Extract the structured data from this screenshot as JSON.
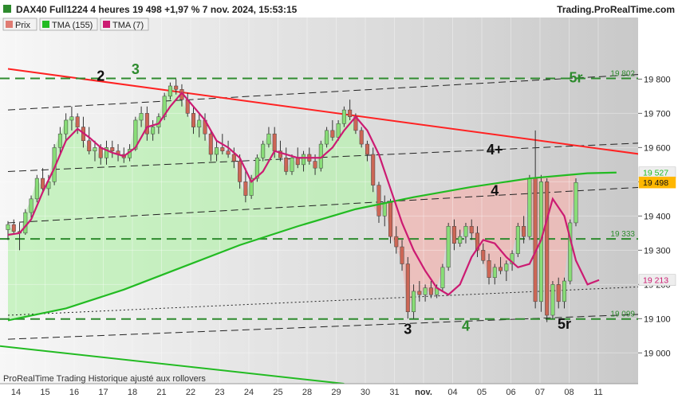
{
  "header": {
    "title": "DAX40 Full1224 4 heures 19 498 +1,97 % 7 nov. 2024, 15:53:15",
    "brand": "Trading.ProRealTime.com"
  },
  "footer": {
    "note": "ProRealTime Trading Historique ajusté aux rollovers"
  },
  "legend": [
    {
      "label": "Prix",
      "color": "#e07b72"
    },
    {
      "label": "TMA (155)",
      "color": "#22bb22"
    },
    {
      "label": "TMA (7)",
      "color": "#cc1b72"
    }
  ],
  "colors": {
    "up_candle": "#88dd77",
    "down_candle": "#cc6655",
    "tma155": "#22bb22",
    "tma7": "#cc1b72",
    "trendline_red": "#ff2222",
    "support_dash": "#2e8b2e",
    "label_green": "#2e8b2e",
    "price_badge": "#ffb700"
  },
  "chart_data": {
    "type": "candlestick",
    "title": "DAX40 Full1224 4 heures",
    "ylim": [
      18910,
      19980
    ],
    "yticks": [
      {
        "value": 19800,
        "label": "19 800"
      },
      {
        "value": 19700,
        "label": "19 700"
      },
      {
        "value": 19600,
        "label": "19 600"
      },
      {
        "value": 19500,
        "label": "19 500"
      },
      {
        "value": 19400,
        "label": "19 400"
      },
      {
        "value": 19300,
        "label": "19 300"
      },
      {
        "value": 19200,
        "label": "19 200"
      },
      {
        "value": 19100,
        "label": "19 100"
      },
      {
        "value": 19000,
        "label": "19 000"
      }
    ],
    "xticks": [
      "14",
      "15",
      "16",
      "17",
      "18",
      "21",
      "22",
      "23",
      "24",
      "25",
      "28",
      "29",
      "30",
      "31",
      "nov.",
      "04",
      "05",
      "06",
      "07",
      "08",
      "11"
    ],
    "candles": [
      {
        "o": 19360,
        "h": 19385,
        "l": 19330,
        "c": 19375
      },
      {
        "o": 19375,
        "h": 19390,
        "l": 19345,
        "c": 19355
      },
      {
        "o": 19355,
        "h": 19380,
        "l": 19300,
        "c": 19350
      },
      {
        "o": 19350,
        "h": 19420,
        "l": 19345,
        "c": 19410
      },
      {
        "o": 19410,
        "h": 19460,
        "l": 19395,
        "c": 19450
      },
      {
        "o": 19450,
        "h": 19520,
        "l": 19440,
        "c": 19510
      },
      {
        "o": 19510,
        "h": 19540,
        "l": 19470,
        "c": 19480
      },
      {
        "o": 19480,
        "h": 19520,
        "l": 19460,
        "c": 19500
      },
      {
        "o": 19500,
        "h": 19610,
        "l": 19490,
        "c": 19600
      },
      {
        "o": 19600,
        "h": 19660,
        "l": 19580,
        "c": 19640
      },
      {
        "o": 19640,
        "h": 19700,
        "l": 19620,
        "c": 19680
      },
      {
        "o": 19680,
        "h": 19720,
        "l": 19650,
        "c": 19690
      },
      {
        "o": 19690,
        "h": 19700,
        "l": 19640,
        "c": 19660
      },
      {
        "o": 19660,
        "h": 19690,
        "l": 19600,
        "c": 19620
      },
      {
        "o": 19620,
        "h": 19660,
        "l": 19580,
        "c": 19590
      },
      {
        "o": 19590,
        "h": 19620,
        "l": 19560,
        "c": 19600
      },
      {
        "o": 19600,
        "h": 19610,
        "l": 19550,
        "c": 19570
      },
      {
        "o": 19570,
        "h": 19620,
        "l": 19550,
        "c": 19600
      },
      {
        "o": 19600,
        "h": 19620,
        "l": 19570,
        "c": 19590
      },
      {
        "o": 19590,
        "h": 19610,
        "l": 19560,
        "c": 19580
      },
      {
        "o": 19580,
        "h": 19600,
        "l": 19555,
        "c": 19570
      },
      {
        "o": 19570,
        "h": 19610,
        "l": 19560,
        "c": 19595
      },
      {
        "o": 19595,
        "h": 19690,
        "l": 19590,
        "c": 19680
      },
      {
        "o": 19680,
        "h": 19720,
        "l": 19660,
        "c": 19700
      },
      {
        "o": 19700,
        "h": 19720,
        "l": 19620,
        "c": 19640
      },
      {
        "o": 19640,
        "h": 19680,
        "l": 19620,
        "c": 19660
      },
      {
        "o": 19660,
        "h": 19700,
        "l": 19640,
        "c": 19690
      },
      {
        "o": 19690,
        "h": 19760,
        "l": 19680,
        "c": 19750
      },
      {
        "o": 19750,
        "h": 19790,
        "l": 19740,
        "c": 19780
      },
      {
        "o": 19780,
        "h": 19800,
        "l": 19755,
        "c": 19770
      },
      {
        "o": 19770,
        "h": 19785,
        "l": 19720,
        "c": 19740
      },
      {
        "o": 19740,
        "h": 19760,
        "l": 19690,
        "c": 19700
      },
      {
        "o": 19700,
        "h": 19720,
        "l": 19640,
        "c": 19660
      },
      {
        "o": 19660,
        "h": 19700,
        "l": 19630,
        "c": 19680
      },
      {
        "o": 19680,
        "h": 19700,
        "l": 19620,
        "c": 19640
      },
      {
        "o": 19640,
        "h": 19650,
        "l": 19560,
        "c": 19580
      },
      {
        "o": 19580,
        "h": 19620,
        "l": 19560,
        "c": 19600
      },
      {
        "o": 19600,
        "h": 19640,
        "l": 19580,
        "c": 19590
      },
      {
        "o": 19590,
        "h": 19620,
        "l": 19570,
        "c": 19580
      },
      {
        "o": 19580,
        "h": 19600,
        "l": 19540,
        "c": 19560
      },
      {
        "o": 19560,
        "h": 19580,
        "l": 19480,
        "c": 19500
      },
      {
        "o": 19500,
        "h": 19540,
        "l": 19440,
        "c": 19460
      },
      {
        "o": 19460,
        "h": 19520,
        "l": 19450,
        "c": 19510
      },
      {
        "o": 19510,
        "h": 19580,
        "l": 19500,
        "c": 19570
      },
      {
        "o": 19570,
        "h": 19620,
        "l": 19560,
        "c": 19610
      },
      {
        "o": 19610,
        "h": 19660,
        "l": 19600,
        "c": 19640
      },
      {
        "o": 19640,
        "h": 19660,
        "l": 19570,
        "c": 19590
      },
      {
        "o": 19590,
        "h": 19620,
        "l": 19560,
        "c": 19570
      },
      {
        "o": 19570,
        "h": 19600,
        "l": 19520,
        "c": 19530
      },
      {
        "o": 19530,
        "h": 19580,
        "l": 19520,
        "c": 19570
      },
      {
        "o": 19570,
        "h": 19600,
        "l": 19540,
        "c": 19550
      },
      {
        "o": 19550,
        "h": 19590,
        "l": 19530,
        "c": 19580
      },
      {
        "o": 19580,
        "h": 19600,
        "l": 19550,
        "c": 19560
      },
      {
        "o": 19560,
        "h": 19580,
        "l": 19520,
        "c": 19540
      },
      {
        "o": 19540,
        "h": 19620,
        "l": 19530,
        "c": 19610
      },
      {
        "o": 19610,
        "h": 19660,
        "l": 19600,
        "c": 19650
      },
      {
        "o": 19650,
        "h": 19680,
        "l": 19620,
        "c": 19630
      },
      {
        "o": 19630,
        "h": 19680,
        "l": 19620,
        "c": 19670
      },
      {
        "o": 19670,
        "h": 19720,
        "l": 19660,
        "c": 19710
      },
      {
        "o": 19710,
        "h": 19740,
        "l": 19680,
        "c": 19690
      },
      {
        "o": 19690,
        "h": 19700,
        "l": 19640,
        "c": 19650
      },
      {
        "o": 19650,
        "h": 19660,
        "l": 19600,
        "c": 19610
      },
      {
        "o": 19610,
        "h": 19620,
        "l": 19560,
        "c": 19580
      },
      {
        "o": 19580,
        "h": 19600,
        "l": 19470,
        "c": 19490
      },
      {
        "o": 19490,
        "h": 19500,
        "l": 19380,
        "c": 19400
      },
      {
        "o": 19400,
        "h": 19460,
        "l": 19370,
        "c": 19440
      },
      {
        "o": 19440,
        "h": 19450,
        "l": 19320,
        "c": 19340
      },
      {
        "o": 19340,
        "h": 19370,
        "l": 19290,
        "c": 19310
      },
      {
        "o": 19310,
        "h": 19330,
        "l": 19240,
        "c": 19260
      },
      {
        "o": 19260,
        "h": 19280,
        "l": 19100,
        "c": 19120
      },
      {
        "o": 19120,
        "h": 19200,
        "l": 19100,
        "c": 19180
      },
      {
        "o": 19180,
        "h": 19210,
        "l": 19150,
        "c": 19170
      },
      {
        "o": 19170,
        "h": 19200,
        "l": 19150,
        "c": 19190
      },
      {
        "o": 19190,
        "h": 19210,
        "l": 19160,
        "c": 19170
      },
      {
        "o": 19170,
        "h": 19200,
        "l": 19160,
        "c": 19190
      },
      {
        "o": 19190,
        "h": 19260,
        "l": 19180,
        "c": 19250
      },
      {
        "o": 19250,
        "h": 19380,
        "l": 19240,
        "c": 19370
      },
      {
        "o": 19370,
        "h": 19390,
        "l": 19300,
        "c": 19320
      },
      {
        "o": 19320,
        "h": 19360,
        "l": 19310,
        "c": 19340
      },
      {
        "o": 19340,
        "h": 19380,
        "l": 19320,
        "c": 19370
      },
      {
        "o": 19370,
        "h": 19390,
        "l": 19330,
        "c": 19350
      },
      {
        "o": 19350,
        "h": 19370,
        "l": 19280,
        "c": 19300
      },
      {
        "o": 19300,
        "h": 19320,
        "l": 19260,
        "c": 19270
      },
      {
        "o": 19270,
        "h": 19290,
        "l": 19200,
        "c": 19220
      },
      {
        "o": 19220,
        "h": 19260,
        "l": 19200,
        "c": 19250
      },
      {
        "o": 19250,
        "h": 19280,
        "l": 19230,
        "c": 19240
      },
      {
        "o": 19240,
        "h": 19270,
        "l": 19210,
        "c": 19260
      },
      {
        "o": 19260,
        "h": 19300,
        "l": 19240,
        "c": 19290
      },
      {
        "o": 19290,
        "h": 19380,
        "l": 19280,
        "c": 19370
      },
      {
        "o": 19370,
        "h": 19400,
        "l": 19320,
        "c": 19340
      },
      {
        "o": 19340,
        "h": 19520,
        "l": 19330,
        "c": 19510
      },
      {
        "o": 19510,
        "h": 19650,
        "l": 19130,
        "c": 19150
      },
      {
        "o": 19150,
        "h": 19520,
        "l": 19120,
        "c": 19500
      },
      {
        "o": 19500,
        "h": 19510,
        "l": 19090,
        "c": 19110
      },
      {
        "o": 19110,
        "h": 19210,
        "l": 19100,
        "c": 19200
      },
      {
        "o": 19200,
        "h": 19220,
        "l": 19130,
        "c": 19150
      },
      {
        "o": 19150,
        "h": 19220,
        "l": 19130,
        "c": 19210
      },
      {
        "o": 19210,
        "h": 19390,
        "l": 19200,
        "c": 19380
      },
      {
        "o": 19380,
        "h": 19510,
        "l": 19370,
        "c": 19498
      }
    ],
    "tma155": [
      [
        0,
        19095
      ],
      [
        10,
        19130
      ],
      [
        20,
        19185
      ],
      [
        30,
        19250
      ],
      [
        40,
        19315
      ],
      [
        50,
        19370
      ],
      [
        60,
        19420
      ],
      [
        70,
        19455
      ],
      [
        80,
        19485
      ],
      [
        90,
        19510
      ],
      [
        100,
        19525
      ],
      [
        105,
        19527
      ]
    ],
    "tma7": [
      [
        0,
        19345
      ],
      [
        2,
        19350
      ],
      [
        4,
        19390
      ],
      [
        6,
        19470
      ],
      [
        8,
        19540
      ],
      [
        10,
        19620
      ],
      [
        12,
        19655
      ],
      [
        14,
        19630
      ],
      [
        16,
        19600
      ],
      [
        18,
        19585
      ],
      [
        20,
        19575
      ],
      [
        22,
        19600
      ],
      [
        24,
        19660
      ],
      [
        26,
        19670
      ],
      [
        28,
        19720
      ],
      [
        30,
        19760
      ],
      [
        32,
        19720
      ],
      [
        34,
        19680
      ],
      [
        36,
        19620
      ],
      [
        38,
        19600
      ],
      [
        40,
        19570
      ],
      [
        42,
        19500
      ],
      [
        44,
        19530
      ],
      [
        46,
        19590
      ],
      [
        48,
        19580
      ],
      [
        50,
        19570
      ],
      [
        52,
        19570
      ],
      [
        54,
        19570
      ],
      [
        56,
        19600
      ],
      [
        58,
        19650
      ],
      [
        60,
        19690
      ],
      [
        62,
        19650
      ],
      [
        64,
        19580
      ],
      [
        66,
        19480
      ],
      [
        68,
        19380
      ],
      [
        70,
        19300
      ],
      [
        72,
        19240
      ],
      [
        74,
        19190
      ],
      [
        76,
        19170
      ],
      [
        78,
        19200
      ],
      [
        80,
        19280
      ],
      [
        82,
        19330
      ],
      [
        84,
        19320
      ],
      [
        86,
        19280
      ],
      [
        88,
        19250
      ],
      [
        90,
        19260
      ],
      [
        92,
        19330
      ],
      [
        94,
        19450
      ],
      [
        96,
        19400
      ],
      [
        98,
        19270
      ],
      [
        100,
        19200
      ],
      [
        102,
        19213
      ]
    ],
    "levels": [
      {
        "value": 19802,
        "label": "19 802"
      },
      {
        "value": 19333,
        "label": "19 333"
      },
      {
        "value": 19099,
        "label": "19 099"
      }
    ],
    "price_labels": [
      {
        "value": 19527,
        "label": "19 527",
        "kind": "tma155"
      },
      {
        "value": 19498,
        "label": "19 498",
        "kind": "last"
      },
      {
        "value": 19213,
        "label": "19 213",
        "kind": "tma7"
      }
    ],
    "annotations": [
      {
        "text": "2",
        "x": 16,
        "y": 19795,
        "color": "#111111"
      },
      {
        "text": "3",
        "x": 22,
        "y": 19815,
        "color": "#2e8b2e"
      },
      {
        "text": "4+",
        "x": 84,
        "y": 19580,
        "color": "#111111"
      },
      {
        "text": "4",
        "x": 84,
        "y": 19460,
        "color": "#111111"
      },
      {
        "text": "5r",
        "x": 98,
        "y": 19790,
        "color": "#2e8b2e"
      },
      {
        "text": "3",
        "x": 69,
        "y": 19055,
        "color": "#111111"
      },
      {
        "text": "4",
        "x": 79,
        "y": 19065,
        "color": "#2e8b2e"
      },
      {
        "text": "5r",
        "x": 96,
        "y": 19070,
        "color": "#111111"
      }
    ],
    "trendlines": {
      "red_resistance": [
        [
          0,
          19830
        ],
        [
          105,
          19590
        ]
      ],
      "channel_upper": [
        [
          0,
          19710
        ],
        [
          105,
          19810
        ]
      ],
      "channel_mid": [
        [
          0,
          19530
        ],
        [
          105,
          19610
        ]
      ],
      "channel_low": [
        [
          0,
          19380
        ],
        [
          105,
          19480
        ]
      ],
      "channel_bottom": [
        [
          0,
          19040
        ],
        [
          105,
          19110
        ]
      ],
      "dotted": [
        [
          0,
          19110
        ],
        [
          105,
          19190
        ]
      ],
      "green_falling": [
        [
          0,
          19020
        ],
        [
          58,
          18910
        ]
      ]
    }
  }
}
